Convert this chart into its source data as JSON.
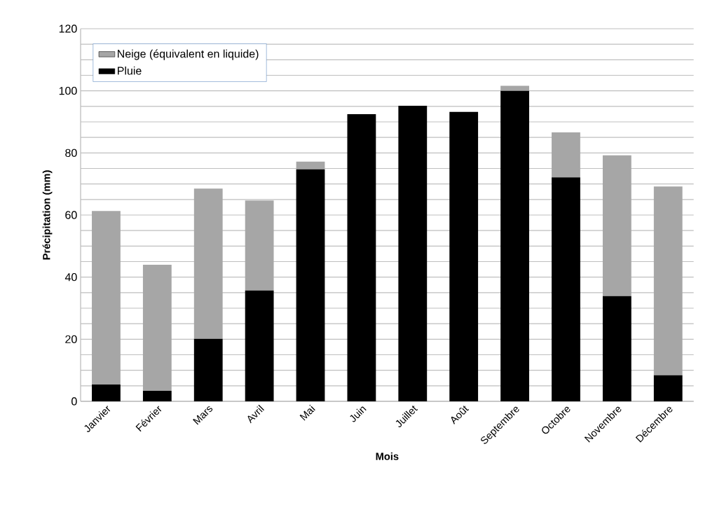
{
  "chart_data": {
    "type": "bar",
    "stacked": true,
    "xlabel": "Mois",
    "ylabel": "Précipitation (mm)",
    "categories": [
      "Janvier",
      "Février",
      "Mars",
      "Avril",
      "Mai",
      "Juin",
      "Juillet",
      "Août",
      "Septembre",
      "Octobre",
      "Novembre",
      "Décembre"
    ],
    "series": [
      {
        "name": "Pluie",
        "color": "#000000",
        "values": [
          5.4,
          3.4,
          20.1,
          35.7,
          74.7,
          92.5,
          95.2,
          93.2,
          100,
          72.1,
          33.9,
          8.4
        ]
      },
      {
        "name": "Neige (équivalent en liquide)",
        "color": "#a6a6a6",
        "values": [
          55.9,
          40.6,
          48.4,
          29.0,
          2.5,
          0,
          0,
          0,
          1.6,
          14.5,
          45.3,
          60.8
        ]
      }
    ],
    "ylim": [
      0,
      120
    ],
    "yticks": [
      0,
      {
        "value": 5,
        "label": null
      },
      {
        "value": 10,
        "label": null
      },
      {
        "value": 15,
        "label": null
      },
      20,
      {
        "value": 25,
        "label": null
      },
      {
        "value": 30,
        "label": null
      },
      {
        "value": 35,
        "label": null
      },
      40,
      {
        "value": 45,
        "label": null
      },
      {
        "value": 50,
        "label": null
      },
      {
        "value": 55,
        "label": null
      },
      60,
      {
        "value": 65,
        "label": null
      },
      {
        "value": 70,
        "label": null
      },
      {
        "value": 75,
        "label": null
      },
      80,
      {
        "value": 85,
        "label": null
      },
      {
        "value": 90,
        "label": null
      },
      {
        "value": 95,
        "label": null
      },
      100,
      {
        "value": 105,
        "label": null
      },
      {
        "value": 110,
        "label": null
      },
      {
        "value": 115,
        "label": null
      },
      120
    ],
    "grid": "y",
    "legend": "top left"
  }
}
